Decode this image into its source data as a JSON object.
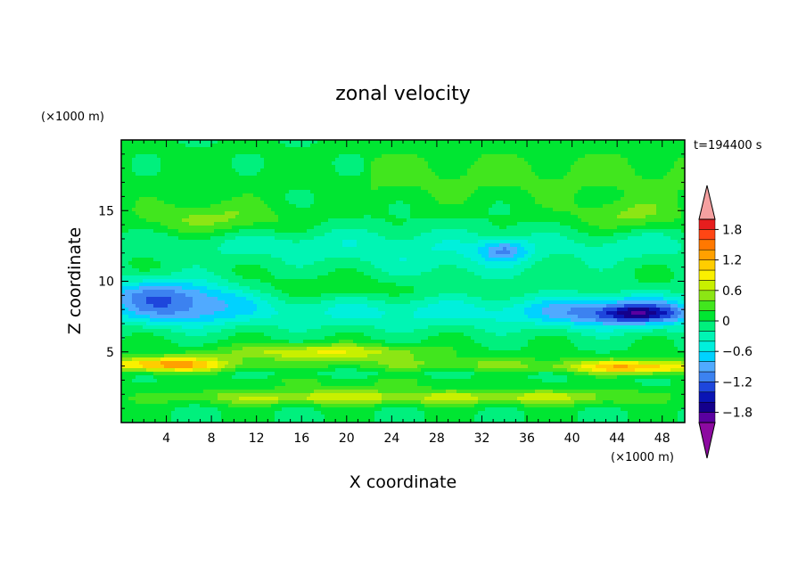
{
  "chart_data": {
    "type": "heatmap",
    "title": "zonal velocity",
    "time_label": "t=194400 s",
    "xlabel": "X coordinate",
    "ylabel": "Z coordinate",
    "x_unit_label": "(×1000 m)",
    "y_unit_label": "(×1000 m)",
    "xlim": [
      0,
      50
    ],
    "ylim": [
      0,
      20
    ],
    "x_ticks": [
      4,
      8,
      12,
      16,
      20,
      24,
      28,
      32,
      36,
      40,
      44,
      48
    ],
    "x_tick_labels": [
      "4",
      "8",
      "12",
      "16",
      "20",
      "24",
      "28",
      "32",
      "36",
      "40",
      "44",
      "48"
    ],
    "y_ticks": [
      5,
      10,
      15
    ],
    "y_tick_labels": [
      "5",
      "10",
      "15"
    ],
    "colorbar": {
      "levels": [
        -2.0,
        -1.8,
        -1.6,
        -1.4,
        -1.2,
        -1.0,
        -0.8,
        -0.6,
        -0.4,
        -0.2,
        0.0,
        0.2,
        0.4,
        0.6,
        0.8,
        1.0,
        1.2,
        1.4,
        1.6,
        1.8,
        2.0
      ],
      "tick_values": [
        1.8,
        1.2,
        0.6,
        0,
        -0.6,
        -1.2,
        -1.8
      ],
      "tick_labels": [
        "1.8",
        "1.2",
        "0.6",
        "0",
        "−0.6",
        "−1.2",
        "−1.8"
      ],
      "colors": [
        "#5a00a0",
        "#14008c",
        "#0a14b4",
        "#1e46dc",
        "#3c82f0",
        "#50aaff",
        "#00d2ff",
        "#00f0dc",
        "#00f5b4",
        "#00f07d",
        "#00e632",
        "#41e61e",
        "#8ce614",
        "#c8f000",
        "#faf000",
        "#ffcd00",
        "#ffa000",
        "#ff7800",
        "#ff4614",
        "#e61e1e"
      ],
      "under_color": "#8c0aa0",
      "over_color": "#f5a0a0"
    },
    "features": [
      {
        "x": 34,
        "z": 12.2,
        "value": -0.9
      },
      {
        "x": 46,
        "z": 7.6,
        "value": -1.6
      },
      {
        "x": 5,
        "z": 4.2,
        "value": 1.4
      },
      {
        "x": 46,
        "z": 3.8,
        "value": 1.2
      },
      {
        "x": 4,
        "z": 9.2,
        "value": -1.0
      },
      {
        "x": 20,
        "z": 4.5,
        "value": 0.7
      },
      {
        "x": 18,
        "z": 1.6,
        "value": 0.7
      }
    ]
  }
}
